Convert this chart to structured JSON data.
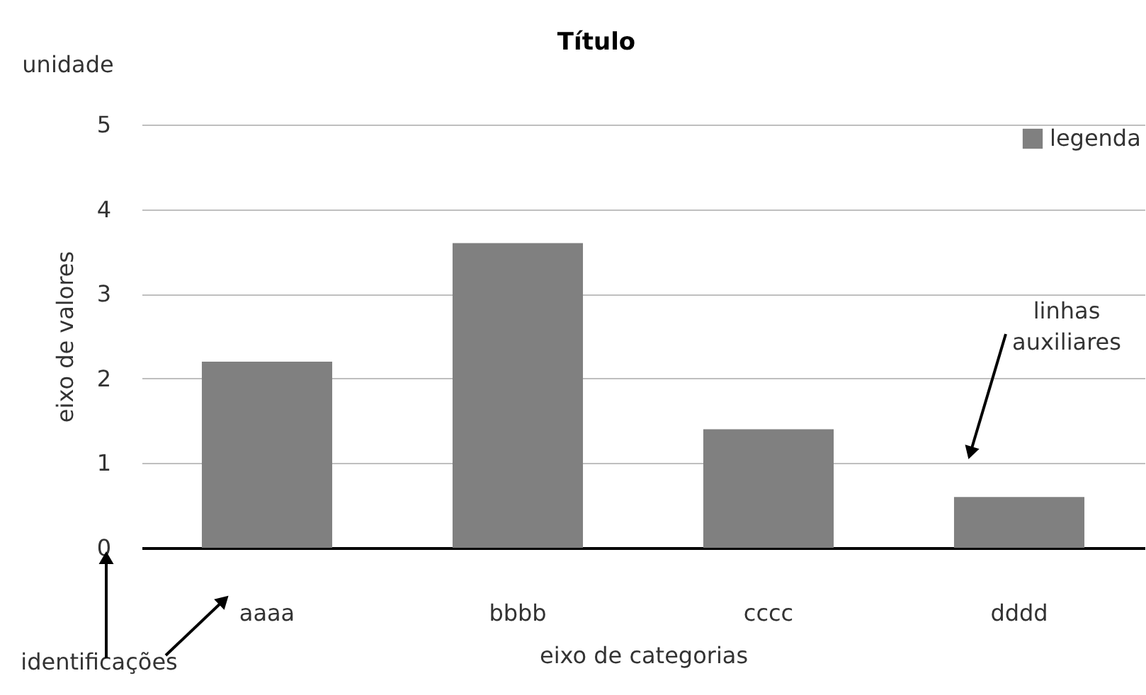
{
  "chart_data": {
    "type": "bar",
    "title": "Título",
    "xlabel": "eixo de categorias",
    "ylabel": "eixo de valores",
    "categories": [
      "aaaa",
      "bbbb",
      "cccc",
      "dddd"
    ],
    "series": [
      {
        "name": "legenda",
        "color": "#808080",
        "values": [
          2.2,
          3.6,
          1.4,
          0.6
        ]
      }
    ],
    "ylim": [
      0,
      5
    ],
    "yticks": [
      0,
      1,
      2,
      3,
      4,
      5
    ],
    "grid": "y",
    "legend": "top right",
    "annotations": [
      "unidade",
      "linhas auxiliares",
      "identificações"
    ]
  }
}
